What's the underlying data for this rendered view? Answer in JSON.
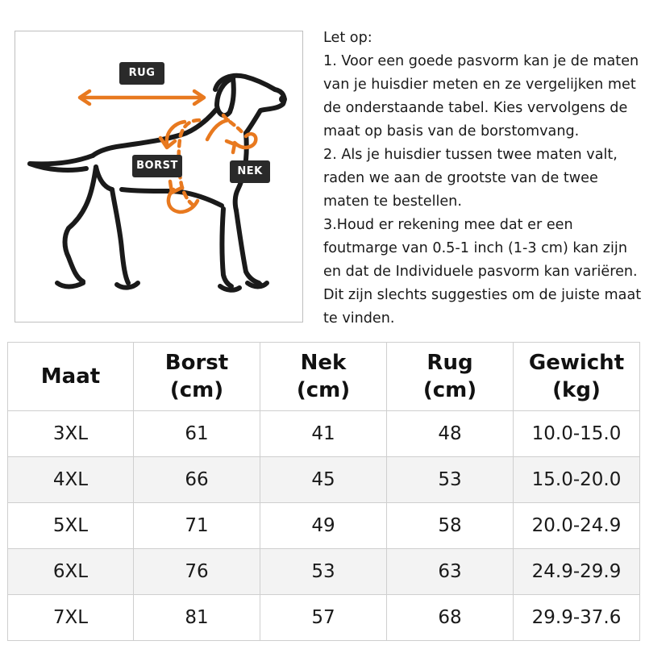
{
  "colors": {
    "accent": "#e8791f",
    "tag_bg": "#2a2a2a",
    "outline": "#1a1a1a"
  },
  "diagram": {
    "labels": {
      "rug": "RUG",
      "borst": "BORST",
      "nek": "NEK"
    },
    "icons": [
      "dog-outline-icon",
      "arrow-icon"
    ]
  },
  "notes": {
    "lines": [
      "Let op:",
      "1. Voor een goede pasvorm kan je de maten",
      "van je huisdier meten en ze vergelijken met",
      "de onderstaande tabel. Kies vervolgens de",
      "maat op basis van de borstomvang.",
      "2. Als je huisdier tussen twee maten valt,",
      "raden we aan de grootste van de twee",
      "maten te bestellen.",
      "3.Houd er rekening mee dat er een",
      "foutmarge van 0.5-1 inch (1-3 cm) kan zijn",
      "en dat de Individuele pasvorm kan variëren.",
      "Dit zijn slechts suggesties om de juiste maat",
      "te vinden."
    ]
  },
  "table": {
    "headers": [
      {
        "line1": "Maat",
        "line2": ""
      },
      {
        "line1": "Borst",
        "line2": "(cm)"
      },
      {
        "line1": "Nek",
        "line2": "(cm)"
      },
      {
        "line1": "Rug",
        "line2": "(cm)"
      },
      {
        "line1": "Gewicht",
        "line2": "(kg)"
      }
    ],
    "rows": [
      [
        "3XL",
        "61",
        "41",
        "48",
        "10.0-15.0"
      ],
      [
        "4XL",
        "66",
        "45",
        "53",
        "15.0-20.0"
      ],
      [
        "5XL",
        "71",
        "49",
        "58",
        "20.0-24.9"
      ],
      [
        "6XL",
        "76",
        "53",
        "63",
        "24.9-29.9"
      ],
      [
        "7XL",
        "81",
        "57",
        "68",
        "29.9-37.6"
      ]
    ]
  }
}
